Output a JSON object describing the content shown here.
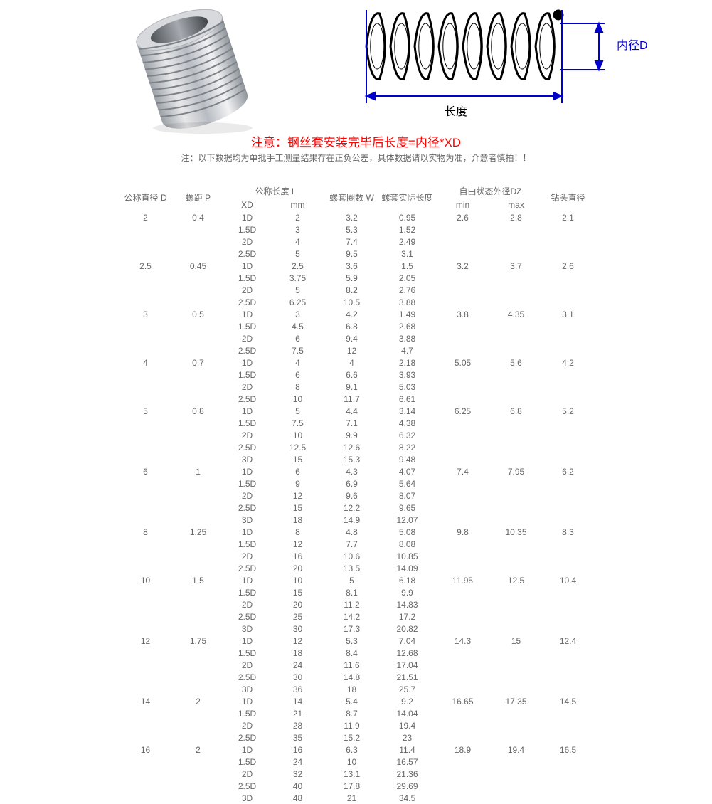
{
  "diagram": {
    "right_label": "内径D",
    "bottom_label": "长度",
    "coil_stroke": "#000000",
    "dim_line_color": "#0000cc"
  },
  "warning_line": "注意：钢丝套安装完毕后长度=内径*XD",
  "subnote_line": "注：以下数据均为单批手工测量结果存在正负公差，具体数据请以实物为准，介意者慎拍！！",
  "headers": {
    "D": "公称直径 D",
    "P": "螺距 P",
    "L_group": "公称长度 L",
    "XD": "XD",
    "mm": "mm",
    "W": "螺套圈数 W",
    "actual_len": "螺套实际长度",
    "DZ_group": "自由状态外径DZ",
    "min": "min",
    "max": "max",
    "drill": "钻头直径"
  },
  "blocks": [
    {
      "D": "2",
      "P": "0.4",
      "rows": [
        {
          "XD": "1D",
          "mm": "2",
          "W": "3.2",
          "len": "0.95"
        },
        {
          "XD": "1.5D",
          "mm": "3",
          "W": "5.3",
          "len": "1.52"
        },
        {
          "XD": "2D",
          "mm": "4",
          "W": "7.4",
          "len": "2.49"
        },
        {
          "XD": "2.5D",
          "mm": "5",
          "W": "9.5",
          "len": "3.1"
        }
      ],
      "min": "2.6",
      "max": "2.8",
      "drill": "2.1"
    },
    {
      "D": "2.5",
      "P": "0.45",
      "rows": [
        {
          "XD": "1D",
          "mm": "2.5",
          "W": "3.6",
          "len": "1.5"
        },
        {
          "XD": "1.5D",
          "mm": "3.75",
          "W": "5.9",
          "len": "2.05"
        },
        {
          "XD": "2D",
          "mm": "5",
          "W": "8.2",
          "len": "2.76"
        },
        {
          "XD": "2.5D",
          "mm": "6.25",
          "W": "10.5",
          "len": "3.88"
        }
      ],
      "min": "3.2",
      "max": "3.7",
      "drill": "2.6"
    },
    {
      "D": "3",
      "P": "0.5",
      "rows": [
        {
          "XD": "1D",
          "mm": "3",
          "W": "4.2",
          "len": "1.49"
        },
        {
          "XD": "1.5D",
          "mm": "4.5",
          "W": "6.8",
          "len": "2.68"
        },
        {
          "XD": "2D",
          "mm": "6",
          "W": "9.4",
          "len": "3.88"
        },
        {
          "XD": "2.5D",
          "mm": "7.5",
          "W": "12",
          "len": "4.7"
        }
      ],
      "min": "3.8",
      "max": "4.35",
      "drill": "3.1"
    },
    {
      "D": "4",
      "P": "0.7",
      "rows": [
        {
          "XD": "1D",
          "mm": "4",
          "W": "4",
          "len": "2.18"
        },
        {
          "XD": "1.5D",
          "mm": "6",
          "W": "6.6",
          "len": "3.93"
        },
        {
          "XD": "2D",
          "mm": "8",
          "W": "9.1",
          "len": "5.03"
        },
        {
          "XD": "2.5D",
          "mm": "10",
          "W": "11.7",
          "len": "6.61"
        }
      ],
      "min": "5.05",
      "max": "5.6",
      "drill": "4.2"
    },
    {
      "D": "5",
      "P": "0.8",
      "rows": [
        {
          "XD": "1D",
          "mm": "5",
          "W": "4.4",
          "len": "3.14"
        },
        {
          "XD": "1.5D",
          "mm": "7.5",
          "W": "7.1",
          "len": "4.38"
        },
        {
          "XD": "2D",
          "mm": "10",
          "W": "9.9",
          "len": "6.32"
        },
        {
          "XD": "2.5D",
          "mm": "12.5",
          "W": "12.6",
          "len": "8.22"
        },
        {
          "XD": "3D",
          "mm": "15",
          "W": "15.3",
          "len": "9.48"
        }
      ],
      "min": "6.25",
      "max": "6.8",
      "drill": "5.2"
    },
    {
      "D": "6",
      "P": "1",
      "rows": [
        {
          "XD": "1D",
          "mm": "6",
          "W": "4.3",
          "len": "4.07"
        },
        {
          "XD": "1.5D",
          "mm": "9",
          "W": "6.9",
          "len": "5.64"
        },
        {
          "XD": "2D",
          "mm": "12",
          "W": "9.6",
          "len": "8.07"
        },
        {
          "XD": "2.5D",
          "mm": "15",
          "W": "12.2",
          "len": "9.65"
        },
        {
          "XD": "3D",
          "mm": "18",
          "W": "14.9",
          "len": "12.07"
        }
      ],
      "min": "7.4",
      "max": "7.95",
      "drill": "6.2"
    },
    {
      "D": "8",
      "P": "1.25",
      "rows": [
        {
          "XD": "1D",
          "mm": "8",
          "W": "4.8",
          "len": "5.08"
        },
        {
          "XD": "1.5D",
          "mm": "12",
          "W": "7.7",
          "len": "8.08"
        },
        {
          "XD": "2D",
          "mm": "16",
          "W": "10.6",
          "len": "10.85"
        },
        {
          "XD": "2.5D",
          "mm": "20",
          "W": "13.5",
          "len": "14.09"
        }
      ],
      "min": "9.8",
      "max": "10.35",
      "drill": "8.3"
    },
    {
      "D": "10",
      "P": "1.5",
      "rows": [
        {
          "XD": "1D",
          "mm": "10",
          "W": "5",
          "len": "6.18"
        },
        {
          "XD": "1.5D",
          "mm": "15",
          "W": "8.1",
          "len": "9.9"
        },
        {
          "XD": "2D",
          "mm": "20",
          "W": "11.2",
          "len": "14.83"
        },
        {
          "XD": "2.5D",
          "mm": "25",
          "W": "14.2",
          "len": "17.2"
        },
        {
          "XD": "3D",
          "mm": "30",
          "W": "17.3",
          "len": "20.82"
        }
      ],
      "min": "11.95",
      "max": "12.5",
      "drill": "10.4"
    },
    {
      "D": "12",
      "P": "1.75",
      "rows": [
        {
          "XD": "1D",
          "mm": "12",
          "W": "5.3",
          "len": "7.04"
        },
        {
          "XD": "1.5D",
          "mm": "18",
          "W": "8.4",
          "len": "12.68"
        },
        {
          "XD": "2D",
          "mm": "24",
          "W": "11.6",
          "len": "17.04"
        },
        {
          "XD": "2.5D",
          "mm": "30",
          "W": "14.8",
          "len": "21.51"
        },
        {
          "XD": "3D",
          "mm": "36",
          "W": "18",
          "len": "25.7"
        }
      ],
      "min": "14.3",
      "max": "15",
      "drill": "12.4"
    },
    {
      "D": "14",
      "P": "2",
      "rows": [
        {
          "XD": "1D",
          "mm": "14",
          "W": "5.4",
          "len": "9.2"
        },
        {
          "XD": "1.5D",
          "mm": "21",
          "W": "8.7",
          "len": "14.04"
        },
        {
          "XD": "2D",
          "mm": "28",
          "W": "11.9",
          "len": "19.4"
        },
        {
          "XD": "2.5D",
          "mm": "35",
          "W": "15.2",
          "len": "23"
        }
      ],
      "min": "16.65",
      "max": "17.35",
      "drill": "14.5"
    },
    {
      "D": "16",
      "P": "2",
      "rows": [
        {
          "XD": "1D",
          "mm": "16",
          "W": "6.3",
          "len": "11.4"
        },
        {
          "XD": "1.5D",
          "mm": "24",
          "W": "10",
          "len": "16.57"
        },
        {
          "XD": "2D",
          "mm": "32",
          "W": "13.1",
          "len": "21.36"
        },
        {
          "XD": "2.5D",
          "mm": "40",
          "W": "17.8",
          "len": "29.69"
        },
        {
          "XD": "3D",
          "mm": "48",
          "W": "21",
          "len": "34.5"
        }
      ],
      "min": "18.9",
      "max": "19.4",
      "drill": "16.5"
    }
  ]
}
